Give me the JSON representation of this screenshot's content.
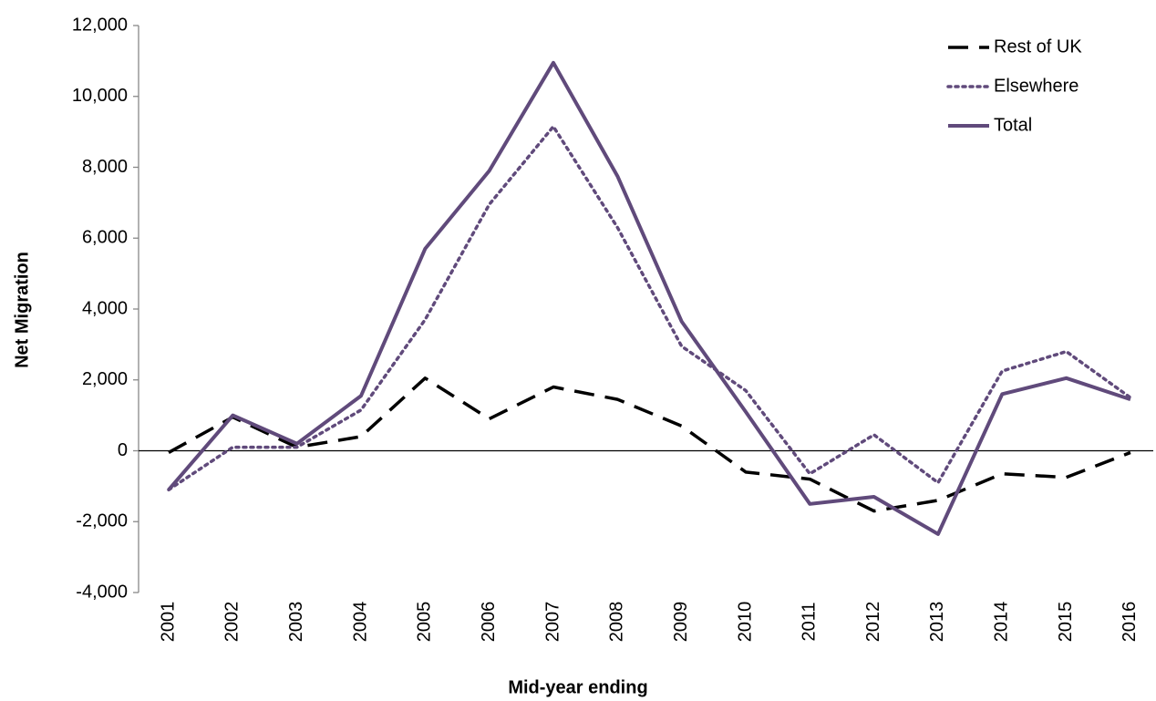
{
  "chart_data": {
    "type": "line",
    "x_label": "Mid-year ending",
    "y_label": "Net Migration",
    "categories": [
      "2001",
      "2002",
      "2003",
      "2004",
      "2005",
      "2006",
      "2007",
      "2008",
      "2009",
      "2010",
      "2011",
      "2012",
      "2013",
      "2014",
      "2015",
      "2016"
    ],
    "series": [
      {
        "name": "Rest of UK",
        "color": "#000000",
        "style": "dashed",
        "values": [
          -50,
          950,
          100,
          400,
          2050,
          900,
          1800,
          1450,
          700,
          -600,
          -800,
          -1700,
          -1400,
          -650,
          -750,
          -50
        ]
      },
      {
        "name": "Elsewhere",
        "color": "#604a7b",
        "style": "dotted",
        "values": [
          -1100,
          100,
          100,
          1150,
          3700,
          6950,
          9150,
          6300,
          2950,
          1700,
          -650,
          450,
          -900,
          2250,
          2800,
          1500
        ]
      },
      {
        "name": "Total",
        "color": "#604a7b",
        "style": "solid",
        "values": [
          -1100,
          1000,
          200,
          1550,
          5700,
          7900,
          10950,
          7750,
          3650,
          1100,
          -1500,
          -1300,
          -2350,
          1600,
          2050,
          1450
        ]
      }
    ],
    "ylim": [
      -4000,
      12000
    ],
    "yticks": [
      {
        "value": -4000,
        "label": "-4,000"
      },
      {
        "value": -2000,
        "label": "-2,000"
      },
      0,
      {
        "value": 2000,
        "label": "2,000"
      },
      {
        "value": 4000,
        "label": "4,000"
      },
      {
        "value": 6000,
        "label": "6,000"
      },
      {
        "value": 8000,
        "label": "8,000"
      },
      {
        "value": 10000,
        "label": "10,000"
      },
      {
        "value": 12000,
        "label": "12,000"
      }
    ],
    "grid": false,
    "legend": "top-right"
  }
}
